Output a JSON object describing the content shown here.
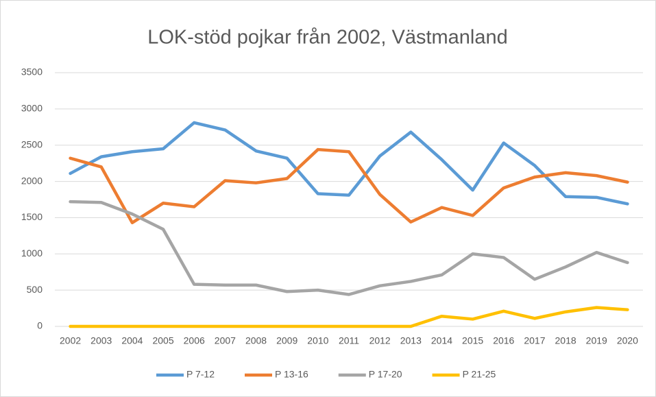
{
  "chart_data": {
    "type": "line",
    "title": "LOK-stöd pojkar från 2002, Västmanland",
    "categories": [
      "2002",
      "2003",
      "2004",
      "2005",
      "2006",
      "2007",
      "2008",
      "2009",
      "2010",
      "2011",
      "2012",
      "2013",
      "2014",
      "2015",
      "2016",
      "2017",
      "2018",
      "2019",
      "2020"
    ],
    "series": [
      {
        "name": "P 7-12",
        "color": "#5b9bd5",
        "values": [
          2110,
          2340,
          2410,
          2450,
          2810,
          2710,
          2420,
          2320,
          1830,
          1810,
          2350,
          2680,
          2300,
          1880,
          2530,
          2220,
          1790,
          1780,
          1690
        ]
      },
      {
        "name": "P 13-16",
        "color": "#ed7d31",
        "values": [
          2320,
          2200,
          1430,
          1700,
          1650,
          2010,
          1980,
          2040,
          2440,
          2410,
          1820,
          1440,
          1640,
          1530,
          1910,
          2060,
          2120,
          2080,
          1990
        ]
      },
      {
        "name": "P 17-20",
        "color": "#a5a5a5",
        "values": [
          1720,
          1710,
          1550,
          1340,
          580,
          570,
          570,
          480,
          500,
          440,
          560,
          620,
          710,
          1000,
          950,
          650,
          820,
          1020,
          880
        ]
      },
      {
        "name": "P 21-25",
        "color": "#ffc000",
        "values": [
          0,
          0,
          0,
          0,
          0,
          0,
          0,
          0,
          0,
          0,
          0,
          0,
          140,
          100,
          210,
          110,
          200,
          260,
          230
        ]
      }
    ],
    "ylim": [
      0,
      3500
    ],
    "yticks": [
      0,
      500,
      1000,
      1500,
      2000,
      2500,
      3000,
      3500
    ],
    "grid": true,
    "legend": "bottom"
  }
}
